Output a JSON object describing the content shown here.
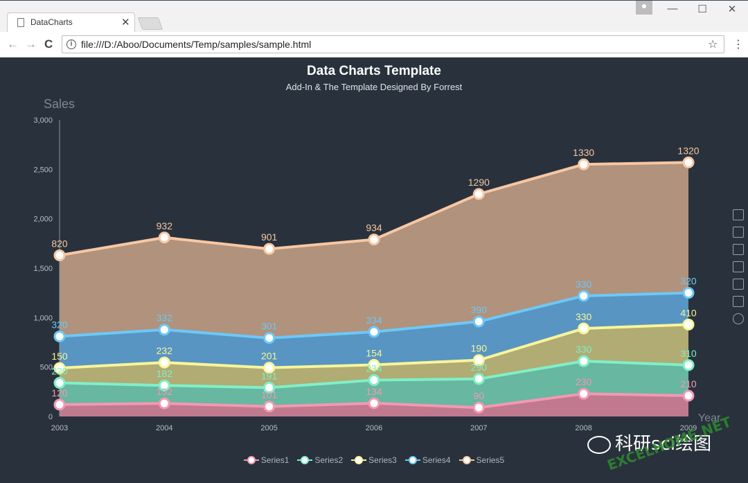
{
  "browser": {
    "tab_title": "DataCharts",
    "tab_close": "✕",
    "url": "file:///D:/Aboo/Documents/Temp/samples/sample.html",
    "back": "←",
    "forward": "→",
    "reload": "C",
    "info": "i",
    "star": "☆",
    "menu": "⋮",
    "minimize": "—",
    "maximize": "☐",
    "close": "✕"
  },
  "colors": {
    "background": "#29323c",
    "series": [
      "#f398b3",
      "#7ff0c7",
      "#f8f59a",
      "#6dc8f7",
      "#f7c7a3"
    ],
    "fills": [
      "#c97d93",
      "#6bbfa5",
      "#b8b277",
      "#5b9bc9",
      "#b8987f"
    ]
  },
  "chart_data": {
    "type": "area",
    "stacked": true,
    "title": "Data Charts Template",
    "subtitle": "Add-In & The Template Designed By Forrest",
    "ylabel": "Sales",
    "xlabel": "Year",
    "ylim": [
      0,
      3000
    ],
    "yticks": [
      0,
      500,
      1000,
      1500,
      2000,
      2500,
      3000
    ],
    "ytick_labels": [
      "0",
      "500",
      "1,000",
      "1,500",
      "2,000",
      "2,500",
      "3,000"
    ],
    "categories": [
      "2003",
      "2004",
      "2005",
      "2006",
      "2007",
      "2008",
      "2009"
    ],
    "series": [
      {
        "name": "Series1",
        "values": [
          120,
          132,
          101,
          134,
          90,
          230,
          210
        ]
      },
      {
        "name": "Series2",
        "values": [
          220,
          182,
          191,
          234,
          290,
          330,
          310
        ]
      },
      {
        "name": "Series3",
        "values": [
          150,
          232,
          201,
          154,
          190,
          330,
          410
        ]
      },
      {
        "name": "Series4",
        "values": [
          320,
          332,
          301,
          334,
          390,
          330,
          320
        ]
      },
      {
        "name": "Series5",
        "values": [
          820,
          932,
          901,
          934,
          1290,
          1330,
          1320
        ]
      }
    ],
    "legend_position": "bottom-center"
  },
  "toolbox": [
    "zoom-icon",
    "zoom-reset-icon",
    "line-switch-icon",
    "bar-switch-icon",
    "stack-icon",
    "tiled-icon",
    "restore-icon"
  ],
  "watermark": {
    "text": "科研sci绘图",
    "site": "EXCELHOME.NET"
  }
}
